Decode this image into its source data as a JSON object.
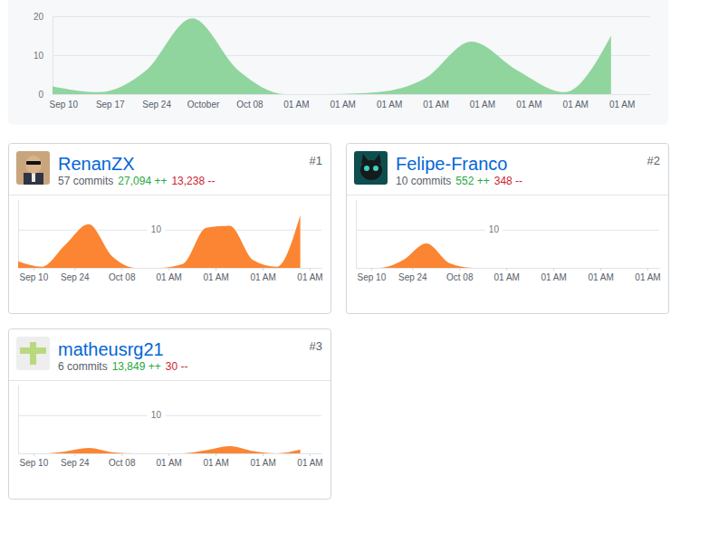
{
  "chart_data": [
    {
      "type": "area",
      "x": [
        0,
        1,
        2,
        3,
        4,
        5,
        6,
        7,
        8,
        9,
        10,
        11,
        12
      ],
      "values": [
        2,
        0.5,
        6,
        19.5,
        6,
        0,
        0,
        0.5,
        4,
        13.5,
        6,
        0.5,
        15
      ],
      "color": "#90d59d",
      "xlim": [
        0,
        12.84
      ],
      "xticks": [
        {
          "value": 0.23,
          "label": "Sep 10"
        },
        {
          "value": 1.23,
          "label": "Sep 17"
        },
        {
          "value": 2.23,
          "label": "Sep 24"
        },
        {
          "value": 3.23,
          "label": "October"
        },
        {
          "value": 4.23,
          "label": "Oct 08"
        },
        {
          "value": 5.23,
          "label": "01 AM"
        },
        {
          "value": 6.23,
          "label": "01 AM"
        },
        {
          "value": 7.23,
          "label": "01 AM"
        },
        {
          "value": 8.23,
          "label": "01 AM"
        },
        {
          "value": 9.23,
          "label": "01 AM"
        },
        {
          "value": 10.23,
          "label": "01 AM"
        },
        {
          "value": 11.23,
          "label": "01 AM"
        },
        {
          "value": 12.23,
          "label": "01 AM"
        }
      ],
      "ylim": [
        0,
        20
      ],
      "yticks": [
        0,
        10,
        20
      ],
      "grid": true
    },
    {
      "type": "area",
      "title": "RenanZX",
      "subtitle": "57 commits",
      "annotations": [
        "27,094 ++",
        "13,238 --",
        "#1"
      ],
      "x": [
        0,
        1,
        2,
        3,
        4,
        5,
        6,
        7,
        8,
        9,
        10,
        11,
        12
      ],
      "values": [
        1.7,
        0.3,
        6,
        11.4,
        3,
        0,
        0,
        1,
        10.5,
        11,
        2,
        0.3,
        13.8
      ],
      "color": "#fb8532",
      "xlim": [
        0,
        12.9
      ],
      "xticks": [
        {
          "value": 0.65,
          "label": "Sep 10"
        },
        {
          "value": 2.4,
          "label": "Sep 24"
        },
        {
          "value": 4.4,
          "label": "Oct 08"
        },
        {
          "value": 6.4,
          "label": "01 AM"
        },
        {
          "value": 8.4,
          "label": "01 AM"
        },
        {
          "value": 10.4,
          "label": "01 AM"
        },
        {
          "value": 12.4,
          "label": "01 AM"
        }
      ],
      "ylim": [
        0,
        18
      ],
      "yticks": [
        10
      ],
      "grid": true
    },
    {
      "type": "area",
      "title": "Felipe-Franco",
      "subtitle": "10 commits",
      "annotations": [
        "552 ++",
        "348 --",
        "#2"
      ],
      "x": [
        0,
        1,
        2,
        3,
        4,
        5,
        6,
        7,
        8,
        9,
        10,
        11,
        12
      ],
      "values": [
        0,
        0,
        2,
        6.4,
        1.2,
        0,
        0,
        0,
        0,
        0,
        0,
        0,
        0
      ],
      "color": "#fb8532",
      "xlim": [
        0,
        12.9
      ],
      "xticks": [
        {
          "value": 0.65,
          "label": "Sep 10"
        },
        {
          "value": 2.4,
          "label": "Sep 24"
        },
        {
          "value": 4.4,
          "label": "Oct 08"
        },
        {
          "value": 6.4,
          "label": "01 AM"
        },
        {
          "value": 8.4,
          "label": "01 AM"
        },
        {
          "value": 10.4,
          "label": "01 AM"
        },
        {
          "value": 12.4,
          "label": "01 AM"
        }
      ],
      "ylim": [
        0,
        18
      ],
      "yticks": [
        10
      ],
      "grid": true
    },
    {
      "type": "area",
      "title": "matheusrg21",
      "subtitle": "6 commits",
      "annotations": [
        "13,849 ++",
        "30 --",
        "#3"
      ],
      "x": [
        0,
        1,
        2,
        3,
        4,
        5,
        6,
        7,
        8,
        9,
        10,
        11,
        12
      ],
      "values": [
        0,
        0,
        0.5,
        1.4,
        0.3,
        0,
        0,
        0,
        0.8,
        1.9,
        0.6,
        0,
        1
      ],
      "color": "#fb8532",
      "xlim": [
        0,
        12.9
      ],
      "xticks": [
        {
          "value": 0.65,
          "label": "Sep 10"
        },
        {
          "value": 2.4,
          "label": "Sep 24"
        },
        {
          "value": 4.4,
          "label": "Oct 08"
        },
        {
          "value": 6.4,
          "label": "01 AM"
        },
        {
          "value": 8.4,
          "label": "01 AM"
        },
        {
          "value": 10.4,
          "label": "01 AM"
        },
        {
          "value": 12.4,
          "label": "01 AM"
        }
      ],
      "ylim": [
        0,
        18
      ],
      "yticks": [
        10
      ],
      "grid": true
    }
  ]
}
